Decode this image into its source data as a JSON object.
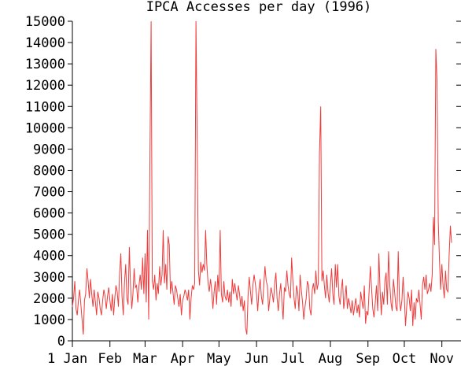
{
  "chart_data": {
    "type": "line",
    "title": "IPCA Accesses per day (1996)",
    "xlabel": "",
    "ylabel": "",
    "x_unit": "day of year",
    "xlim": [
      1,
      314
    ],
    "ylim": [
      0,
      15000
    ],
    "grid": false,
    "line_color": "#ee3b3b",
    "y_ticks": [
      0,
      1000,
      2000,
      3000,
      4000,
      5000,
      6000,
      7000,
      8000,
      9000,
      10000,
      11000,
      12000,
      13000,
      14000,
      15000
    ],
    "x_ticks": [
      {
        "label": "1 Jan",
        "day": 1
      },
      {
        "label": "Feb",
        "day": 32
      },
      {
        "label": "Mar",
        "day": 61
      },
      {
        "label": "Apr",
        "day": 92
      },
      {
        "label": "May",
        "day": 122
      },
      {
        "label": "Jun",
        "day": 153
      },
      {
        "label": "Jul",
        "day": 183
      },
      {
        "label": "Aug",
        "day": 214
      },
      {
        "label": "Sep",
        "day": 245
      },
      {
        "label": "Oct",
        "day": 275
      },
      {
        "label": "Nov",
        "day": 306
      }
    ],
    "series": [
      {
        "values": [
          [
            1,
            1600
          ],
          [
            2,
            2000
          ],
          [
            3,
            2800
          ],
          [
            4,
            1500
          ],
          [
            5,
            1200
          ],
          [
            6,
            1900
          ],
          [
            7,
            2400
          ],
          [
            8,
            1700
          ],
          [
            9,
            1000
          ],
          [
            10,
            300
          ],
          [
            11,
            1900
          ],
          [
            12,
            2200
          ],
          [
            13,
            3400
          ],
          [
            14,
            2800
          ],
          [
            15,
            2000
          ],
          [
            16,
            2900
          ],
          [
            17,
            2200
          ],
          [
            18,
            1600
          ],
          [
            19,
            2400
          ],
          [
            20,
            1800
          ],
          [
            21,
            1200
          ],
          [
            22,
            2300
          ],
          [
            23,
            2000
          ],
          [
            24,
            1500
          ],
          [
            25,
            1200
          ],
          [
            26,
            1900
          ],
          [
            27,
            2400
          ],
          [
            28,
            2100
          ],
          [
            29,
            1500
          ],
          [
            30,
            2100
          ],
          [
            31,
            2500
          ],
          [
            32,
            1900
          ],
          [
            33,
            1400
          ],
          [
            34,
            2200
          ],
          [
            35,
            1200
          ],
          [
            36,
            2000
          ],
          [
            37,
            2600
          ],
          [
            38,
            2300
          ],
          [
            39,
            1600
          ],
          [
            40,
            3200
          ],
          [
            41,
            4100
          ],
          [
            42,
            2100
          ],
          [
            43,
            1200
          ],
          [
            44,
            2700
          ],
          [
            45,
            3600
          ],
          [
            46,
            2000
          ],
          [
            47,
            1700
          ],
          [
            48,
            4400
          ],
          [
            49,
            2600
          ],
          [
            50,
            1500
          ],
          [
            51,
            2200
          ],
          [
            52,
            3400
          ],
          [
            53,
            2500
          ],
          [
            54,
            2600
          ],
          [
            55,
            1800
          ],
          [
            56,
            2600
          ],
          [
            57,
            3100
          ],
          [
            58,
            2400
          ],
          [
            59,
            3900
          ],
          [
            60,
            2200
          ],
          [
            61,
            4100
          ],
          [
            62,
            1800
          ],
          [
            63,
            5200
          ],
          [
            64,
            1000
          ],
          [
            65,
            8700
          ],
          [
            66,
            15000
          ],
          [
            67,
            2800
          ],
          [
            68,
            2400
          ],
          [
            69,
            3100
          ],
          [
            70,
            1900
          ],
          [
            71,
            2700
          ],
          [
            72,
            2200
          ],
          [
            73,
            3500
          ],
          [
            74,
            2600
          ],
          [
            75,
            3100
          ],
          [
            76,
            5200
          ],
          [
            77,
            2700
          ],
          [
            78,
            3600
          ],
          [
            79,
            2400
          ],
          [
            80,
            4900
          ],
          [
            81,
            4500
          ],
          [
            82,
            2200
          ],
          [
            83,
            2800
          ],
          [
            84,
            2300
          ],
          [
            85,
            1700
          ],
          [
            86,
            2600
          ],
          [
            87,
            2400
          ],
          [
            88,
            2000
          ],
          [
            89,
            1600
          ],
          [
            90,
            2200
          ],
          [
            91,
            1200
          ],
          [
            92,
            1900
          ],
          [
            93,
            2100
          ],
          [
            94,
            2400
          ],
          [
            95,
            2200
          ],
          [
            96,
            1900
          ],
          [
            97,
            2400
          ],
          [
            98,
            1000
          ],
          [
            99,
            2000
          ],
          [
            100,
            2600
          ],
          [
            101,
            2400
          ],
          [
            102,
            2700
          ],
          [
            103,
            15000
          ],
          [
            104,
            9600
          ],
          [
            105,
            3300
          ],
          [
            106,
            2600
          ],
          [
            107,
            3700
          ],
          [
            108,
            3200
          ],
          [
            109,
            3600
          ],
          [
            110,
            3300
          ],
          [
            111,
            5200
          ],
          [
            112,
            3600
          ],
          [
            113,
            2700
          ],
          [
            114,
            2300
          ],
          [
            115,
            2900
          ],
          [
            116,
            2400
          ],
          [
            117,
            1500
          ],
          [
            118,
            2300
          ],
          [
            119,
            2800
          ],
          [
            120,
            1700
          ],
          [
            121,
            3100
          ],
          [
            122,
            2300
          ],
          [
            123,
            5200
          ],
          [
            124,
            2200
          ],
          [
            125,
            1800
          ],
          [
            126,
            2800
          ],
          [
            127,
            2100
          ],
          [
            128,
            1900
          ],
          [
            129,
            2400
          ],
          [
            130,
            1800
          ],
          [
            131,
            2300
          ],
          [
            132,
            1600
          ],
          [
            133,
            2900
          ],
          [
            134,
            2200
          ],
          [
            135,
            2700
          ],
          [
            136,
            2300
          ],
          [
            137,
            1900
          ],
          [
            138,
            2600
          ],
          [
            139,
            2200
          ],
          [
            140,
            1600
          ],
          [
            141,
            2100
          ],
          [
            142,
            1400
          ],
          [
            143,
            1900
          ],
          [
            144,
            600
          ],
          [
            145,
            300
          ],
          [
            146,
            2100
          ],
          [
            147,
            3000
          ],
          [
            148,
            2300
          ],
          [
            149,
            1700
          ],
          [
            150,
            2600
          ],
          [
            151,
            3100
          ],
          [
            152,
            2700
          ],
          [
            153,
            2200
          ],
          [
            154,
            1400
          ],
          [
            155,
            2400
          ],
          [
            156,
            2900
          ],
          [
            157,
            2100
          ],
          [
            158,
            1700
          ],
          [
            159,
            2600
          ],
          [
            160,
            3500
          ],
          [
            161,
            2800
          ],
          [
            162,
            2600
          ],
          [
            163,
            1400
          ],
          [
            164,
            2000
          ],
          [
            165,
            2500
          ],
          [
            166,
            2200
          ],
          [
            167,
            1800
          ],
          [
            168,
            2700
          ],
          [
            169,
            3200
          ],
          [
            170,
            2000
          ],
          [
            171,
            1400
          ],
          [
            172,
            2200
          ],
          [
            173,
            2700
          ],
          [
            174,
            1800
          ],
          [
            175,
            1000
          ],
          [
            176,
            2500
          ],
          [
            177,
            2300
          ],
          [
            178,
            3300
          ],
          [
            179,
            2600
          ],
          [
            180,
            2200
          ],
          [
            181,
            2000
          ],
          [
            182,
            3900
          ],
          [
            183,
            2800
          ],
          [
            184,
            2000
          ],
          [
            185,
            1500
          ],
          [
            186,
            2600
          ],
          [
            187,
            2300
          ],
          [
            188,
            1400
          ],
          [
            189,
            3100
          ],
          [
            190,
            2400
          ],
          [
            191,
            1800
          ],
          [
            192,
            1000
          ],
          [
            193,
            1600
          ],
          [
            194,
            2000
          ],
          [
            195,
            2800
          ],
          [
            196,
            2600
          ],
          [
            197,
            1500
          ],
          [
            198,
            1200
          ],
          [
            199,
            2400
          ],
          [
            200,
            2700
          ],
          [
            201,
            2200
          ],
          [
            202,
            3300
          ],
          [
            203,
            2400
          ],
          [
            204,
            2700
          ],
          [
            205,
            8800
          ],
          [
            206,
            11000
          ],
          [
            207,
            2800
          ],
          [
            208,
            3300
          ],
          [
            209,
            2600
          ],
          [
            210,
            2000
          ],
          [
            211,
            3100
          ],
          [
            212,
            2300
          ],
          [
            213,
            1800
          ],
          [
            214,
            2600
          ],
          [
            215,
            3400
          ],
          [
            216,
            2200
          ],
          [
            217,
            1700
          ],
          [
            218,
            3600
          ],
          [
            219,
            2500
          ],
          [
            220,
            3600
          ],
          [
            221,
            2100
          ],
          [
            222,
            1700
          ],
          [
            223,
            2400
          ],
          [
            224,
            2900
          ],
          [
            225,
            1500
          ],
          [
            226,
            2000
          ],
          [
            227,
            2600
          ],
          [
            228,
            1500
          ],
          [
            229,
            2000
          ],
          [
            230,
            1700
          ],
          [
            231,
            1300
          ],
          [
            232,
            1900
          ],
          [
            233,
            1200
          ],
          [
            234,
            1600
          ],
          [
            235,
            2000
          ],
          [
            236,
            1300
          ],
          [
            237,
            1700
          ],
          [
            238,
            1100
          ],
          [
            239,
            2300
          ],
          [
            240,
            1900
          ],
          [
            241,
            1500
          ],
          [
            242,
            2600
          ],
          [
            243,
            800
          ],
          [
            244,
            1400
          ],
          [
            245,
            1200
          ],
          [
            246,
            2400
          ],
          [
            247,
            3500
          ],
          [
            248,
            2400
          ],
          [
            249,
            1500
          ],
          [
            250,
            1100
          ],
          [
            251,
            1800
          ],
          [
            252,
            2600
          ],
          [
            253,
            1400
          ],
          [
            254,
            4100
          ],
          [
            255,
            2400
          ],
          [
            256,
            1200
          ],
          [
            257,
            2300
          ],
          [
            258,
            1700
          ],
          [
            259,
            2800
          ],
          [
            260,
            3200
          ],
          [
            261,
            1700
          ],
          [
            262,
            4200
          ],
          [
            263,
            2600
          ],
          [
            264,
            1800
          ],
          [
            265,
            1400
          ],
          [
            266,
            2900
          ],
          [
            267,
            2300
          ],
          [
            268,
            1600
          ],
          [
            269,
            1400
          ],
          [
            270,
            4200
          ],
          [
            271,
            1900
          ],
          [
            272,
            1400
          ],
          [
            273,
            1900
          ],
          [
            274,
            3000
          ],
          [
            275,
            2100
          ],
          [
            276,
            700
          ],
          [
            277,
            1600
          ],
          [
            278,
            2300
          ],
          [
            279,
            2000
          ],
          [
            280,
            1400
          ],
          [
            281,
            2400
          ],
          [
            282,
            700
          ],
          [
            283,
            1800
          ],
          [
            284,
            1000
          ],
          [
            285,
            2000
          ],
          [
            286,
            1800
          ],
          [
            287,
            2400
          ],
          [
            288,
            1700
          ],
          [
            289,
            1000
          ],
          [
            290,
            2600
          ],
          [
            291,
            3000
          ],
          [
            292,
            2400
          ],
          [
            293,
            3100
          ],
          [
            294,
            2200
          ],
          [
            295,
            2400
          ],
          [
            296,
            2700
          ],
          [
            297,
            2300
          ],
          [
            298,
            3100
          ],
          [
            299,
            5800
          ],
          [
            300,
            4500
          ],
          [
            301,
            13700
          ],
          [
            302,
            12200
          ],
          [
            303,
            5600
          ],
          [
            304,
            3800
          ],
          [
            305,
            2400
          ],
          [
            306,
            3600
          ],
          [
            307,
            2600
          ],
          [
            308,
            2000
          ],
          [
            309,
            3300
          ],
          [
            310,
            2400
          ],
          [
            311,
            2300
          ],
          [
            312,
            4000
          ],
          [
            313,
            5400
          ],
          [
            314,
            4600
          ]
        ]
      }
    ]
  }
}
